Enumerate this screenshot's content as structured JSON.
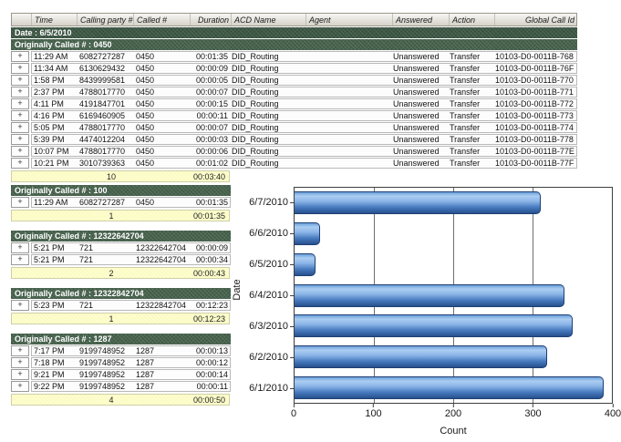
{
  "report": {
    "columns": [
      "",
      "Time",
      "Calling party #",
      "Called #",
      "Duration",
      "ACD Name",
      "Agent",
      "Answered",
      "Action",
      "Global Call Id"
    ],
    "date_band": "Date : 6/5/2010",
    "expand_glyph": "+",
    "main_group": {
      "label": "Originally Called # : 0450",
      "rows": [
        {
          "time": "11:29 AM",
          "calling": "6082727287",
          "called": "0450",
          "duration": "00:01:35",
          "acd": "DID_Routing",
          "agent": "",
          "answered": "Unanswered",
          "action": "Transfer",
          "global_id": "10103-D0-0011B-768"
        },
        {
          "time": "11:34 AM",
          "calling": "6130629432",
          "called": "0450",
          "duration": "00:00:09",
          "acd": "DID_Routing",
          "agent": "",
          "answered": "Unanswered",
          "action": "Transfer",
          "global_id": "10103-D0-0011B-76F"
        },
        {
          "time": "1:58 PM",
          "calling": "8439999581",
          "called": "0450",
          "duration": "00:00:05",
          "acd": "DID_Routing",
          "agent": "",
          "answered": "Unanswered",
          "action": "Transfer",
          "global_id": "10103-D0-0011B-770"
        },
        {
          "time": "2:37 PM",
          "calling": "4788017770",
          "called": "0450",
          "duration": "00:00:07",
          "acd": "DID_Routing",
          "agent": "",
          "answered": "Unanswered",
          "action": "Transfer",
          "global_id": "10103-D0-0011B-771"
        },
        {
          "time": "4:11 PM",
          "calling": "4191847701",
          "called": "0450",
          "duration": "00:00:15",
          "acd": "DID_Routing",
          "agent": "",
          "answered": "Unanswered",
          "action": "Transfer",
          "global_id": "10103-D0-0011B-772"
        },
        {
          "time": "4:16 PM",
          "calling": "6169460905",
          "called": "0450",
          "duration": "00:00:11",
          "acd": "DID_Routing",
          "agent": "",
          "answered": "Unanswered",
          "action": "Transfer",
          "global_id": "10103-D0-0011B-773"
        },
        {
          "time": "5:05 PM",
          "calling": "4788017770",
          "called": "0450",
          "duration": "00:00:07",
          "acd": "DID_Routing",
          "agent": "",
          "answered": "Unanswered",
          "action": "Transfer",
          "global_id": "10103-D0-0011B-774"
        },
        {
          "time": "5:39 PM",
          "calling": "4474012204",
          "called": "0450",
          "duration": "00:00:03",
          "acd": "DID_Routing",
          "agent": "",
          "answered": "Unanswered",
          "action": "Transfer",
          "global_id": "10103-D0-0011B-778"
        },
        {
          "time": "10:07 PM",
          "calling": "4788017770",
          "called": "0450",
          "duration": "00:00:06",
          "acd": "DID_Routing",
          "agent": "",
          "answered": "Unanswered",
          "action": "Transfer",
          "global_id": "10103-D0-0011B-77E"
        },
        {
          "time": "10:21 PM",
          "calling": "3010739363",
          "called": "0450",
          "duration": "00:01:02",
          "acd": "DID_Routing",
          "agent": "",
          "answered": "Unanswered",
          "action": "Transfer",
          "global_id": "10103-D0-0011B-77F"
        }
      ],
      "summary": {
        "count": "10",
        "total": "00:03:40"
      }
    },
    "mini_groups": [
      {
        "label": "Originally Called # : 100",
        "rows": [
          {
            "time": "11:29 AM",
            "calling": "6082727287",
            "called": "0450",
            "duration": "00:01:35"
          }
        ],
        "summary": {
          "count": "1",
          "total": "00:01:35"
        }
      },
      {
        "label": "Originally Called # : 12322642704",
        "rows": [
          {
            "time": "5:21 PM",
            "calling": "721",
            "called": "12322642704",
            "duration": "00:00:09"
          },
          {
            "time": "5:21 PM",
            "calling": "721",
            "called": "12322642704",
            "duration": "00:00:34"
          }
        ],
        "summary": {
          "count": "2",
          "total": "00:00:43"
        }
      },
      {
        "label": "Originally Called # : 12322842704",
        "rows": [
          {
            "time": "5:23 PM",
            "calling": "721",
            "called": "12322842704",
            "duration": "00:12:23"
          }
        ],
        "summary": {
          "count": "1",
          "total": "00:12:23"
        }
      },
      {
        "label": "Originally Called # : 1287",
        "rows": [
          {
            "time": "7:17 PM",
            "calling": "9199748952",
            "called": "1287",
            "duration": "00:00:13"
          },
          {
            "time": "7:18 PM",
            "calling": "9199748952",
            "called": "1287",
            "duration": "00:00:12"
          },
          {
            "time": "9:21 PM",
            "calling": "9199748952",
            "called": "1287",
            "duration": "00:00:14"
          },
          {
            "time": "9:22 PM",
            "calling": "9199748952",
            "called": "1287",
            "duration": "00:00:11"
          }
        ],
        "summary": {
          "count": "4",
          "total": "00:00:50"
        }
      }
    ]
  },
  "chart_data": {
    "type": "bar",
    "orientation": "horizontal",
    "title": "",
    "categories": [
      "6/7/2010",
      "6/6/2010",
      "6/5/2010",
      "6/4/2010",
      "6/3/2010",
      "6/2/2010",
      "6/1/2010"
    ],
    "values": [
      310,
      32,
      27,
      340,
      350,
      318,
      390
    ],
    "xlabel": "Count",
    "ylabel": "Date",
    "xlim": [
      0,
      400
    ],
    "xticks": [
      0,
      100,
      200,
      300,
      400
    ],
    "grid": "vertical",
    "legend": "none",
    "bar_color_top": "#abcdf1",
    "bar_color_bottom": "#27508e"
  },
  "colors": {
    "date_band_green": "#3d5845",
    "group_band_green": "#47634d",
    "summary_yellow": "#ffffcc",
    "header_gray": "#d6d2c9"
  }
}
